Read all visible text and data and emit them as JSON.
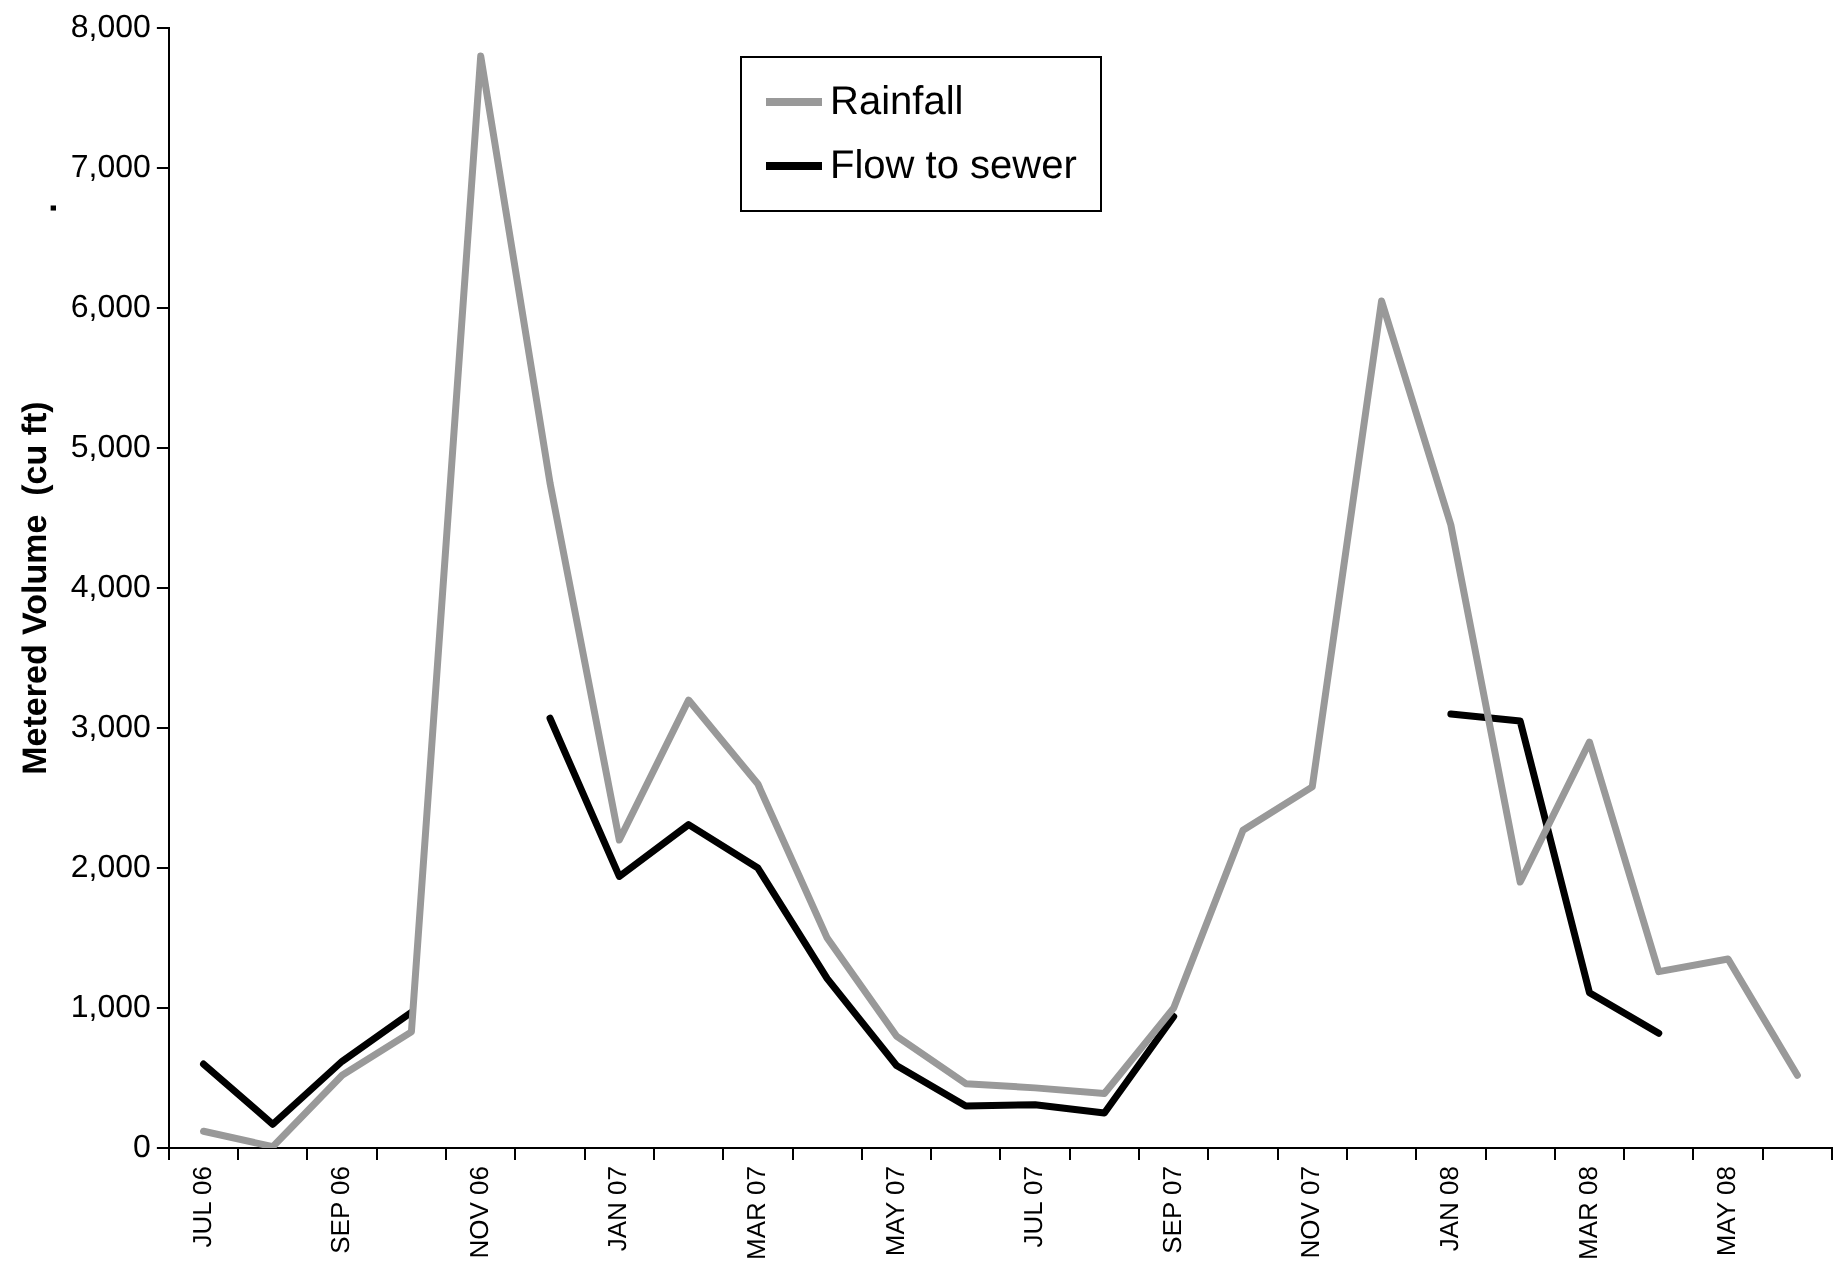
{
  "chart_data": {
    "type": "line",
    "ylabel": "Metered Volume  (cu ft)",
    "annotations": [
      "."
    ],
    "categories": [
      "JUL 06",
      null,
      "SEP 06",
      null,
      "NOV 06",
      null,
      "JAN 07",
      null,
      "MAR 07",
      null,
      "MAY 07",
      null,
      "JUL 07",
      null,
      "SEP 07",
      null,
      "NOV 07",
      null,
      "JAN 08",
      null,
      "MAR 08",
      null,
      "MAY 08",
      null
    ],
    "series": [
      {
        "name": "Rainfall",
        "color": "#999999",
        "values": [
          120,
          10,
          520,
          830,
          7800,
          4750,
          2200,
          3200,
          2600,
          1500,
          800,
          460,
          430,
          390,
          1000,
          2270,
          2580,
          6050,
          4450,
          1900,
          2900,
          1260,
          1350,
          520
        ]
      },
      {
        "name": "Flow to sewer",
        "color": "#000000",
        "values": [
          600,
          170,
          620,
          970,
          null,
          3070,
          1940,
          2310,
          2000,
          1210,
          590,
          300,
          310,
          250,
          940,
          null,
          null,
          null,
          3100,
          3050,
          1110,
          820,
          null,
          null
        ]
      }
    ],
    "ylim": [
      0,
      8000
    ],
    "yticks": [
      0,
      {
        "value": 1000,
        "label": "1,000"
      },
      {
        "value": 2000,
        "label": "2,000"
      },
      {
        "value": 3000,
        "label": "3,000"
      },
      {
        "value": 4000,
        "label": "4,000"
      },
      {
        "value": 5000,
        "label": "5,000"
      },
      {
        "value": 6000,
        "label": "6,000"
      },
      {
        "value": 7000,
        "label": "7,000"
      },
      {
        "value": 8000,
        "label": "8,000"
      }
    ],
    "grid": false,
    "legend": "top",
    "marker": "none",
    "line_style": "solid"
  }
}
